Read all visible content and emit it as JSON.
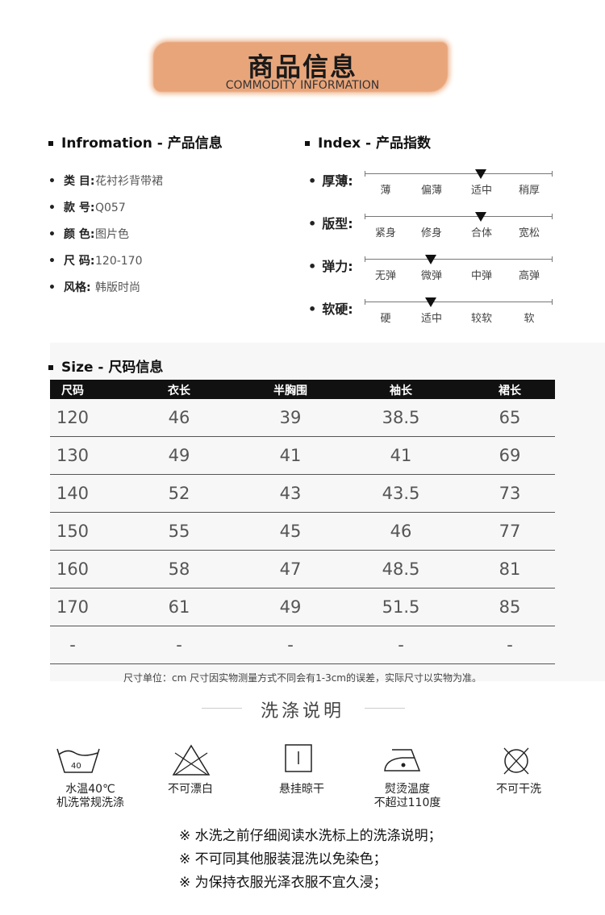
{
  "header": {
    "title": "商品信息",
    "subtitle": "COMMODITY INFORMATION",
    "banner_color": "#e9a57a"
  },
  "info": {
    "heading": "Infromation - 产品信息",
    "items": [
      {
        "label": "类 目:",
        "value": "花衬衫背带裙"
      },
      {
        "label": "款 号:",
        "value": "Q057"
      },
      {
        "label": "颜 色:",
        "value": "图片色"
      },
      {
        "label": "尺 码:",
        "value": "120-170"
      },
      {
        "label": "风格:",
        "value": "韩版时尚"
      }
    ]
  },
  "index": {
    "heading": "Index - 产品指数",
    "rows": [
      {
        "label": "厚薄:",
        "options": [
          "薄",
          "偏薄",
          "适中",
          "稍厚"
        ],
        "selected": "适中"
      },
      {
        "label": "版型:",
        "options": [
          "紧身",
          "修身",
          "合体",
          "宽松"
        ],
        "selected": "合体"
      },
      {
        "label": "弹力:",
        "options": [
          "无弹",
          "微弹",
          "中弹",
          "高弹"
        ],
        "selected": "微弹"
      },
      {
        "label": "软硬:",
        "options": [
          "硬",
          "适中",
          "较软",
          "软"
        ],
        "selected": "适中"
      }
    ]
  },
  "size": {
    "heading": "Size - 尺码信息",
    "columns": [
      "尺码",
      "衣长",
      "半胸围",
      "袖长",
      "裙长"
    ],
    "rows": [
      [
        "120",
        "46",
        "39",
        "38.5",
        "65"
      ],
      [
        "130",
        "49",
        "41",
        "41",
        "69"
      ],
      [
        "140",
        "52",
        "43",
        "43.5",
        "73"
      ],
      [
        "150",
        "55",
        "45",
        "46",
        "77"
      ],
      [
        "160",
        "58",
        "47",
        "48.5",
        "81"
      ],
      [
        "170",
        "61",
        "49",
        "51.5",
        "85"
      ],
      [
        "-",
        "-",
        "-",
        "-",
        "-"
      ]
    ],
    "note": "尺寸单位：cm 尺寸因实物测量方式不同会有1-3cm的误差，实际尺寸以实物为准。"
  },
  "wash": {
    "title": "洗涤说明",
    "icons": [
      {
        "icon": "wash-40-icon",
        "number": "40",
        "lines": [
          "水温40℃",
          "机洗常规洗涤"
        ]
      },
      {
        "icon": "no-bleach-icon",
        "lines": [
          "不可漂白"
        ]
      },
      {
        "icon": "hang-dry-icon",
        "lines": [
          "悬挂晾干"
        ]
      },
      {
        "icon": "iron-icon",
        "lines": [
          "熨烫温度",
          "不超过110度"
        ]
      },
      {
        "icon": "no-dry-clean-icon",
        "lines": [
          "不可干洗"
        ]
      }
    ],
    "tips": [
      "※ 水洗之前仔细阅读水洗标上的洗涤说明；",
      "※ 不可同其他服装混洗以免染色；",
      "※ 为保持衣服光泽衣服不宜久浸；"
    ]
  }
}
